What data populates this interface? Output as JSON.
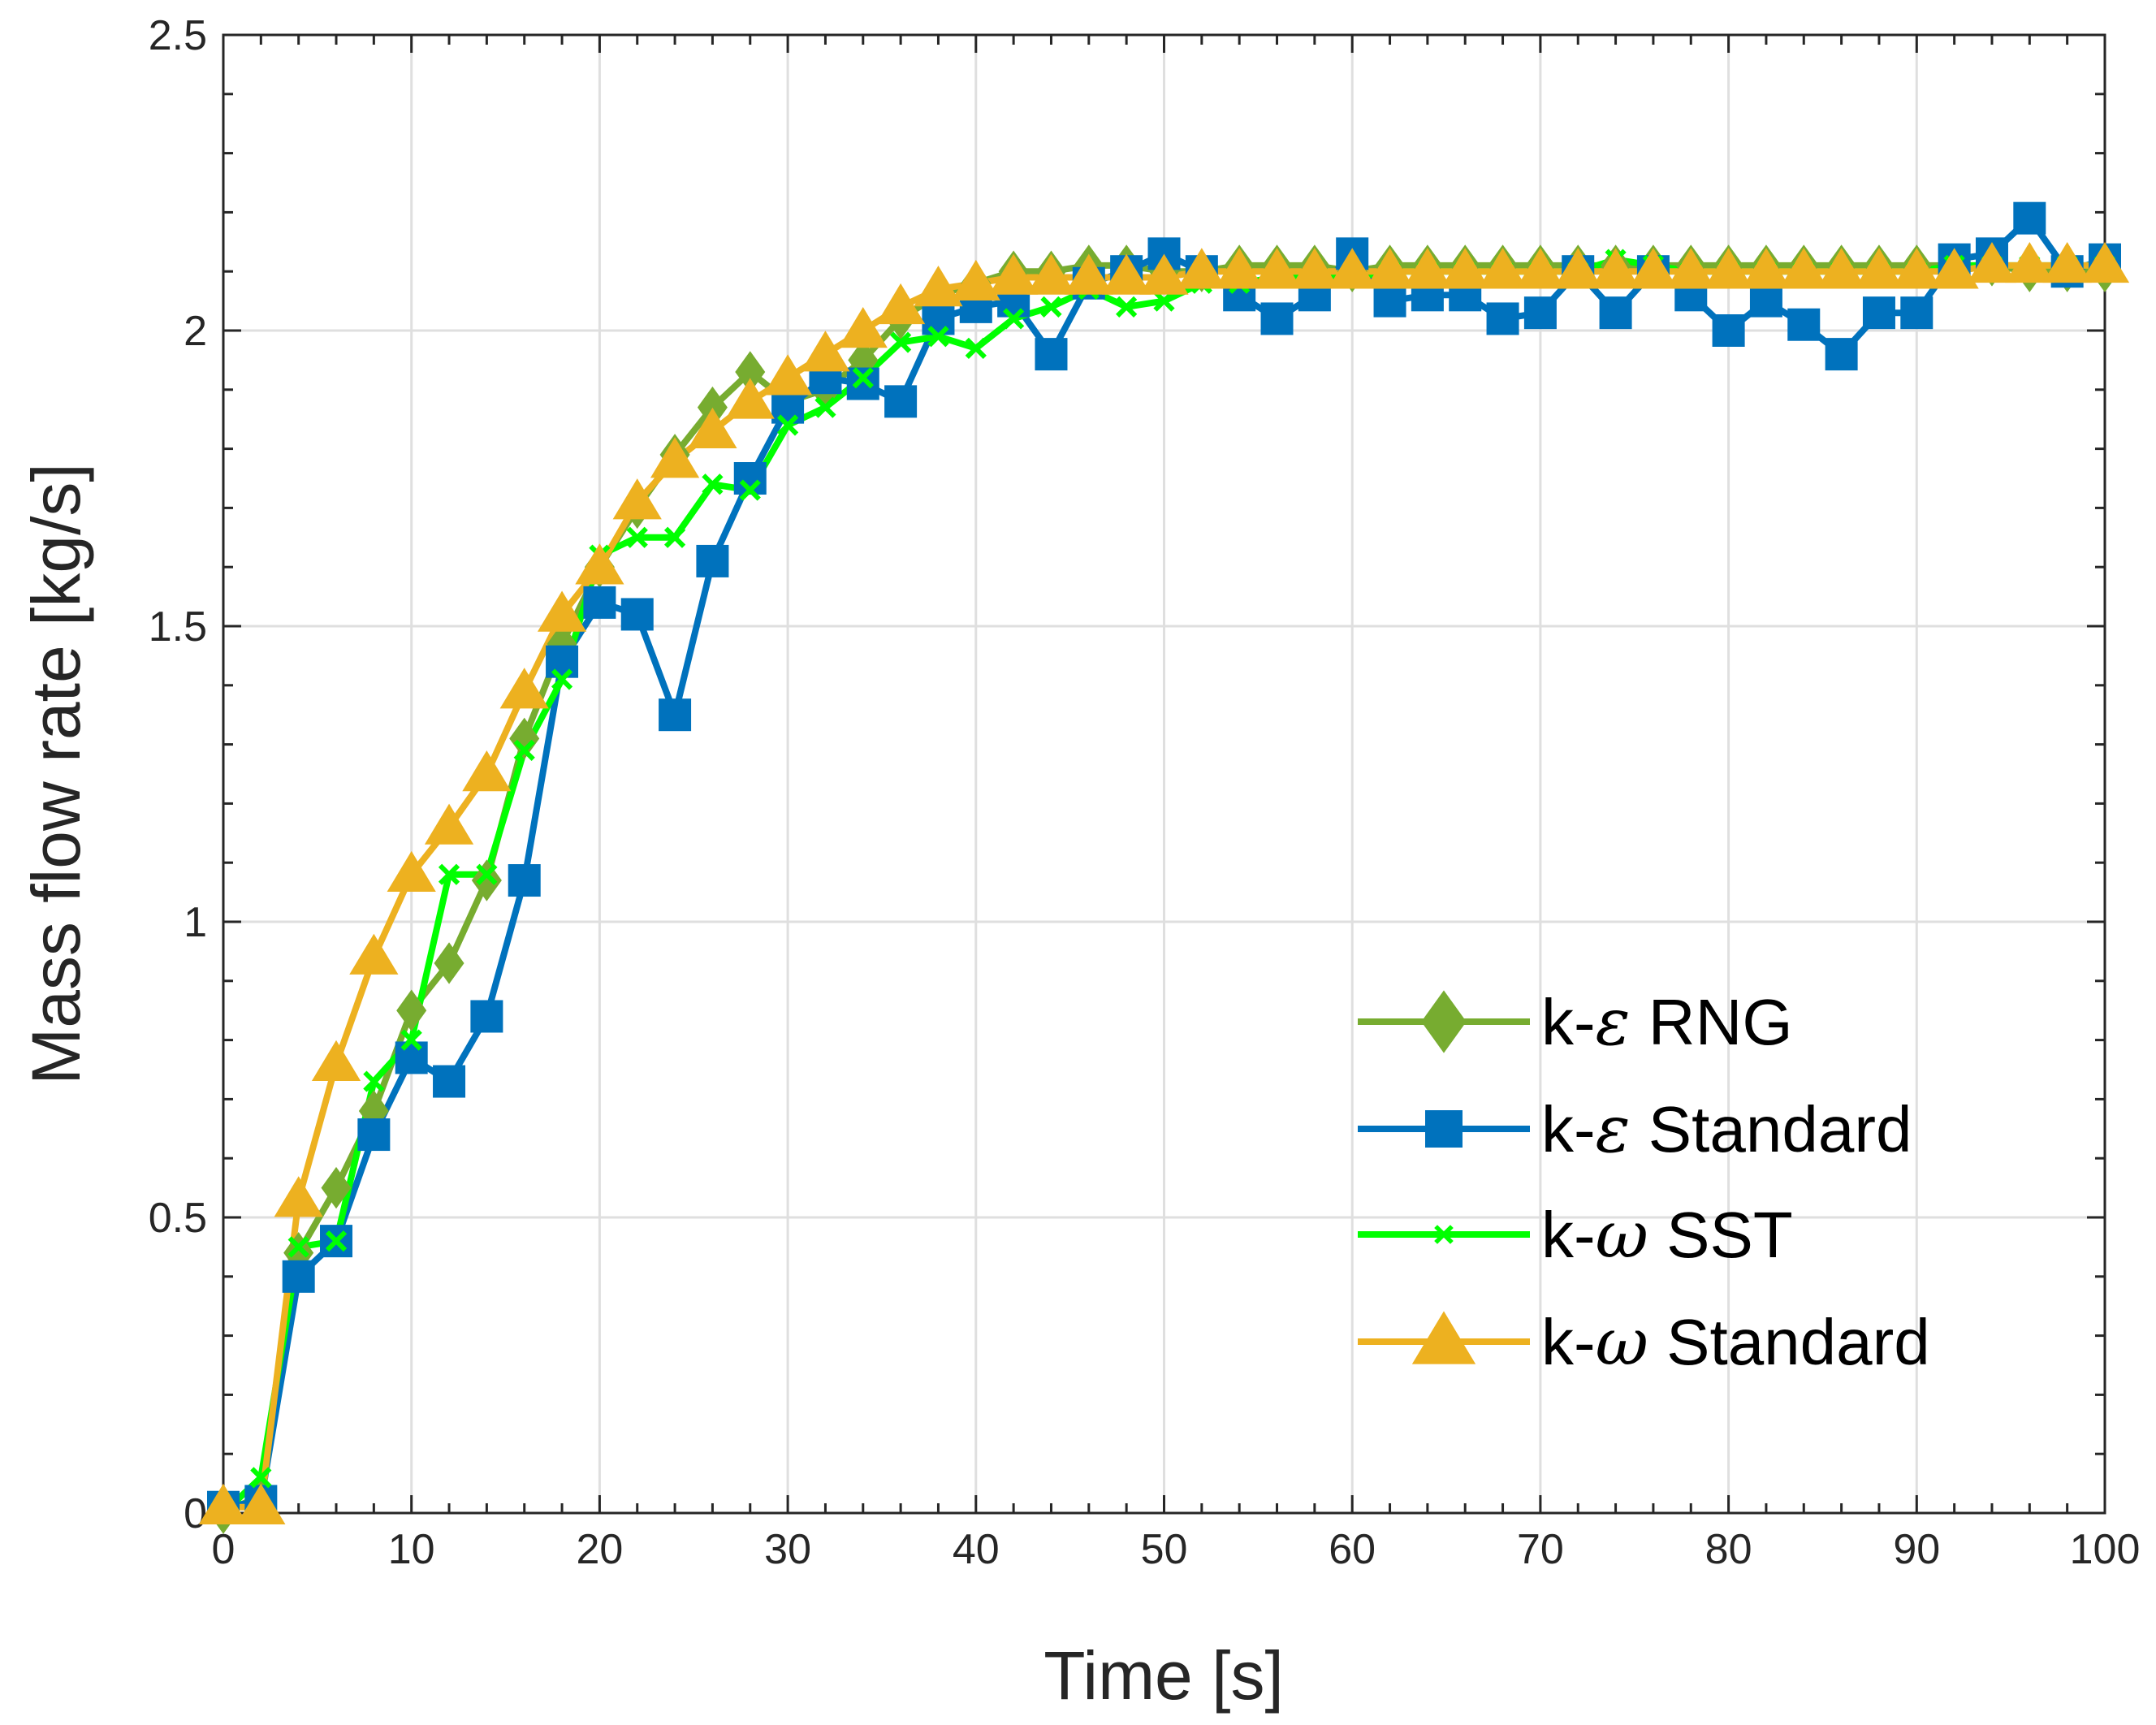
{
  "chart_data": {
    "type": "line",
    "title": "",
    "xlabel": "Time [s]",
    "ylabel": "Mass flow rate [kg/s]",
    "xlim": [
      0,
      100
    ],
    "ylim": [
      0,
      2.5
    ],
    "xticks": [
      0,
      10,
      20,
      30,
      40,
      50,
      60,
      70,
      80,
      90,
      100
    ],
    "yticks": [
      0,
      0.5,
      1,
      1.5,
      2,
      2.5
    ],
    "xtick_labels": [
      "0",
      "10",
      "20",
      "30",
      "40",
      "50",
      "60",
      "70",
      "80",
      "90",
      "100"
    ],
    "ytick_labels": [
      "0",
      "0.5",
      "1",
      "1.5",
      "2",
      "2.5"
    ],
    "grid": true,
    "legend_position": "bottom-right",
    "x": [
      0,
      2,
      4,
      6,
      8,
      10,
      12,
      14,
      16,
      18,
      20,
      22,
      24,
      26,
      28,
      30,
      32,
      34,
      36,
      38,
      40,
      42,
      44,
      46,
      48,
      50,
      52,
      54,
      56,
      58,
      60,
      62,
      64,
      66,
      68,
      70,
      72,
      74,
      76,
      78,
      80,
      82,
      84,
      86,
      88,
      90,
      92,
      94,
      96,
      98,
      100
    ],
    "series": [
      {
        "name": "k-ε RNG",
        "legend_prefix": "k-",
        "legend_symbol": "ε",
        "legend_suffix": " RNG",
        "color": "#77AC30",
        "marker": "diamond",
        "values": [
          0.0,
          0.03,
          0.44,
          0.55,
          0.68,
          0.85,
          0.93,
          1.07,
          1.31,
          1.47,
          1.6,
          1.7,
          1.79,
          1.87,
          1.93,
          1.88,
          1.9,
          1.95,
          2.02,
          2.06,
          2.08,
          2.1,
          2.1,
          2.11,
          2.11,
          2.1,
          2.1,
          2.11,
          2.11,
          2.11,
          2.1,
          2.11,
          2.11,
          2.11,
          2.11,
          2.11,
          2.11,
          2.11,
          2.11,
          2.11,
          2.11,
          2.11,
          2.11,
          2.11,
          2.11,
          2.11,
          2.11,
          2.11,
          2.1,
          2.1,
          2.1
        ]
      },
      {
        "name": "k-ε Standard",
        "legend_prefix": "k-",
        "legend_symbol": "ε",
        "legend_suffix": " Standard",
        "color": "#0072BD",
        "marker": "square",
        "values": [
          0.01,
          0.02,
          0.4,
          0.46,
          0.64,
          0.77,
          0.73,
          0.84,
          1.07,
          1.44,
          1.54,
          1.52,
          1.35,
          1.61,
          1.75,
          1.87,
          1.92,
          1.91,
          1.88,
          2.02,
          2.04,
          2.05,
          1.96,
          2.08,
          2.1,
          2.13,
          2.1,
          2.06,
          2.02,
          2.06,
          2.13,
          2.05,
          2.06,
          2.06,
          2.02,
          2.03,
          2.1,
          2.03,
          2.1,
          2.06,
          2.0,
          2.05,
          2.01,
          1.96,
          2.03,
          2.03,
          2.12,
          2.13,
          2.19,
          2.1,
          2.12
        ]
      },
      {
        "name": "k-ω SST",
        "legend_prefix": "k-",
        "legend_symbol": "ω",
        "legend_suffix": " SST",
        "color": "#00FF00",
        "marker": "cross",
        "values": [
          0.0,
          0.06,
          0.45,
          0.46,
          0.73,
          0.8,
          1.08,
          1.08,
          1.29,
          1.41,
          1.62,
          1.65,
          1.65,
          1.74,
          1.73,
          1.84,
          1.87,
          1.92,
          1.98,
          1.99,
          1.97,
          2.02,
          2.04,
          2.07,
          2.04,
          2.05,
          2.08,
          2.08,
          2.09,
          2.09,
          2.09,
          2.1,
          2.1,
          2.1,
          2.1,
          2.1,
          2.1,
          2.12,
          2.11,
          2.1,
          2.1,
          2.1,
          2.1,
          2.1,
          2.1,
          2.1,
          2.11,
          2.11,
          2.11,
          2.11,
          2.11
        ]
      },
      {
        "name": "k-ω Standard",
        "legend_prefix": "k-",
        "legend_symbol": "ω",
        "legend_suffix": " Standard",
        "color": "#EDB120",
        "marker": "triangle",
        "values": [
          0.01,
          0.01,
          0.53,
          0.76,
          0.94,
          1.08,
          1.16,
          1.25,
          1.39,
          1.52,
          1.6,
          1.71,
          1.78,
          1.83,
          1.88,
          1.92,
          1.96,
          2.0,
          2.04,
          2.07,
          2.08,
          2.09,
          2.09,
          2.09,
          2.09,
          2.09,
          2.1,
          2.1,
          2.1,
          2.1,
          2.1,
          2.1,
          2.1,
          2.1,
          2.1,
          2.1,
          2.1,
          2.1,
          2.1,
          2.1,
          2.1,
          2.1,
          2.1,
          2.1,
          2.1,
          2.1,
          2.1,
          2.11,
          2.11,
          2.11,
          2.11
        ]
      }
    ]
  }
}
